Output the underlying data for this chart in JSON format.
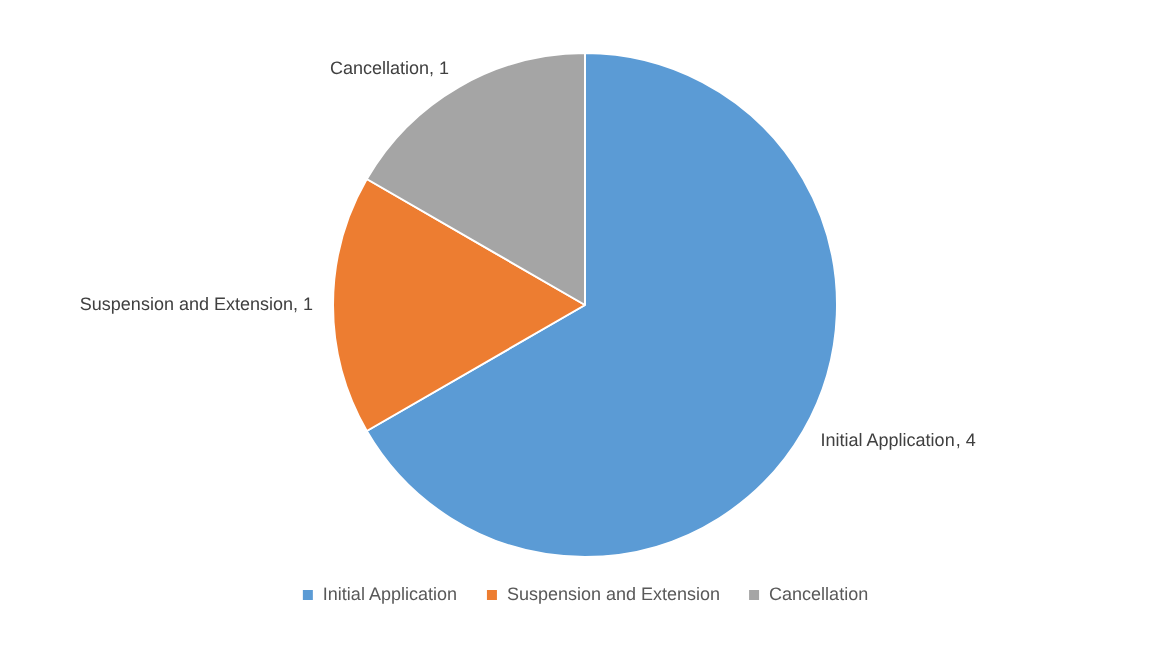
{
  "chart_data": {
    "type": "pie",
    "categories": [
      "Initial Application",
      "Suspension and Extension",
      "Cancellation"
    ],
    "values": [
      4,
      1,
      1
    ],
    "value_labels": [
      ", 4",
      ", 1",
      ", 1"
    ],
    "colors": [
      "#5b9bd5",
      "#ed7d31",
      "#a5a5a5"
    ],
    "legend": "bottom"
  }
}
